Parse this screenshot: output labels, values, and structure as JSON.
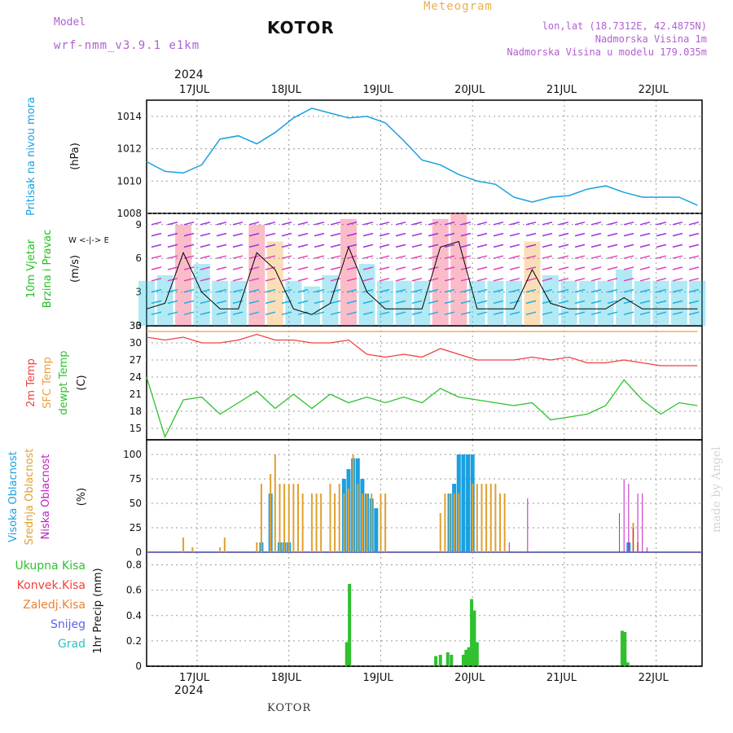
{
  "header": {
    "model_label": "Model",
    "model_name": "wrf-nmm_v3.9.1 e1km",
    "station": "KOTOR",
    "title": "Meteogram",
    "coords": "lon,lat (18.7312E, 42.4875N)",
    "elevation": "Nadmorska Visina 1m",
    "model_elevation": "Nadmorska Visina u modelu 179.035m",
    "year": "2024",
    "footer_station": "KOTOR",
    "credit": "made by Angel"
  },
  "colors": {
    "pressure": "#1aa0e0",
    "temp2m": "#f04040",
    "sfc": "#e8a040",
    "dewpt": "#30c030",
    "high_cloud": "#1aa0e0",
    "mid_cloud": "#e0a030",
    "low_cloud": "#c020c0",
    "precip": "#30c030",
    "wind_label": "#20c020",
    "purple": "#b060d0"
  },
  "days": [
    "17JUL",
    "18JUL",
    "19JUL",
    "20JUL",
    "21JUL",
    "22JUL"
  ],
  "panels": {
    "pressure": {
      "label": "Pritisak na nivou mora",
      "unit": "(hPa)",
      "ticks": [
        "1008",
        "1010",
        "1012",
        "1014"
      ]
    },
    "wind": {
      "label1": "10m Vjetar",
      "label2": "Brzina i Pravac",
      "unit": "(m/s)",
      "ticks": [
        "3",
        "6",
        "9",
        "0"
      ],
      "compass": "W <-|-> E"
    },
    "temp": {
      "label1": "2m Temp",
      "label2": "SFC Temp",
      "label3": "dewpt Temp",
      "unit": "(C)",
      "ticks": [
        "15",
        "18",
        "21",
        "24",
        "27",
        "30",
        "33"
      ]
    },
    "cloud": {
      "label1": "Visoka Oblacnost",
      "label2": "Srednja Oblacnost",
      "label3": "Niska Oblacnost",
      "unit": "(%)",
      "ticks": [
        "0",
        "25",
        "50",
        "75",
        "100"
      ]
    },
    "precip": {
      "legend": [
        "Ukupna Kisa",
        "Konvek.Kisa",
        "Zaledj.Kisa",
        "Snijeg",
        "Grad"
      ],
      "unit": "1hr Precip (mm)",
      "ticks": [
        "0",
        "0.2",
        "0.4",
        "0.6",
        "0.8"
      ]
    }
  },
  "chart_data": [
    {
      "type": "line",
      "title": "Pritisak na nivou mora",
      "ylabel": "(hPa)",
      "ylim": [
        1008,
        1015
      ],
      "x_unit": "day of July 2024",
      "x": [
        16.5,
        16.7,
        16.9,
        17.1,
        17.3,
        17.5,
        17.7,
        17.9,
        18.1,
        18.3,
        18.5,
        18.7,
        18.9,
        19.1,
        19.3,
        19.5,
        19.7,
        19.9,
        20.1,
        20.3,
        20.5,
        20.7,
        20.9,
        21.1,
        21.3,
        21.5,
        21.7,
        21.9,
        22.1,
        22.3,
        22.5
      ],
      "values": [
        1011.2,
        1010.6,
        1010.5,
        1011.0,
        1012.6,
        1012.8,
        1012.3,
        1013.0,
        1013.9,
        1014.5,
        1014.2,
        1013.9,
        1014.0,
        1013.6,
        1012.5,
        1011.3,
        1011.0,
        1010.4,
        1010.0,
        1009.8,
        1009.0,
        1008.7,
        1009.0,
        1009.1,
        1009.5,
        1009.7,
        1009.3,
        1009.0,
        1009.0,
        1009.0,
        1008.5
      ]
    },
    {
      "type": "line",
      "title": "10m Vjetar Brzina i Pravac",
      "ylabel": "(m/s)",
      "ylim": [
        0,
        10
      ],
      "x_unit": "day of July 2024",
      "x": [
        16.5,
        16.7,
        16.9,
        17.1,
        17.3,
        17.5,
        17.7,
        17.9,
        18.1,
        18.3,
        18.5,
        18.7,
        18.9,
        19.1,
        19.3,
        19.5,
        19.7,
        19.9,
        20.1,
        20.3,
        20.5,
        20.7,
        20.9,
        21.1,
        21.3,
        21.5,
        21.7,
        21.9,
        22.1,
        22.3,
        22.5
      ],
      "values": [
        1.5,
        2.0,
        6.5,
        3.0,
        1.5,
        1.5,
        6.5,
        5.0,
        1.5,
        1.0,
        2.0,
        7.0,
        3.0,
        1.5,
        1.5,
        1.5,
        7.0,
        7.5,
        1.5,
        1.5,
        1.5,
        5.0,
        2.0,
        1.5,
        1.5,
        1.5,
        2.5,
        1.5,
        1.5,
        1.5,
        1.5
      ]
    },
    {
      "type": "line",
      "title": "2m Temp / SFC Temp / dewpt Temp",
      "ylabel": "(C)",
      "ylim": [
        13,
        33
      ],
      "x_unit": "day of July 2024",
      "x": [
        16.5,
        16.7,
        16.9,
        17.1,
        17.3,
        17.5,
        17.7,
        17.9,
        18.1,
        18.3,
        18.5,
        18.7,
        18.9,
        19.1,
        19.3,
        19.5,
        19.7,
        19.9,
        20.1,
        20.3,
        20.5,
        20.7,
        20.9,
        21.1,
        21.3,
        21.5,
        21.7,
        21.9,
        22.1,
        22.3,
        22.5
      ],
      "series": [
        {
          "name": "SFC Temp",
          "values": [
            32,
            32,
            32,
            32,
            32,
            32,
            32,
            32,
            32,
            32,
            32,
            32,
            32,
            32,
            32,
            32,
            32,
            32,
            32,
            32,
            32,
            32,
            32,
            32,
            32,
            32,
            32,
            32,
            32,
            32,
            32
          ]
        },
        {
          "name": "2m Temp",
          "values": [
            31.0,
            30.5,
            31.0,
            30.0,
            30.0,
            30.5,
            31.5,
            30.5,
            30.5,
            30.0,
            30.0,
            30.5,
            28.0,
            27.5,
            28.0,
            27.5,
            29.0,
            28.0,
            27.0,
            27.0,
            27.0,
            27.5,
            27.0,
            27.5,
            26.5,
            26.5,
            27.0,
            26.5,
            26.0,
            26.0,
            26.0
          ]
        },
        {
          "name": "dewpt Temp",
          "values": [
            24.0,
            13.5,
            20.0,
            20.5,
            17.5,
            19.5,
            21.5,
            18.5,
            21.0,
            18.5,
            21.0,
            19.5,
            20.5,
            19.5,
            20.5,
            19.5,
            22.0,
            20.5,
            20.0,
            19.5,
            19.0,
            19.5,
            16.5,
            17.0,
            17.5,
            19.0,
            23.5,
            20.0,
            17.5,
            19.5,
            19.0
          ]
        }
      ]
    },
    {
      "type": "bar",
      "title": "Oblacnost",
      "ylabel": "(%)",
      "ylim": [
        0,
        100
      ],
      "x_unit": "day of July 2024",
      "series": [
        {
          "name": "Visoka Oblacnost",
          "x": [
            17.75,
            17.85,
            17.95,
            18.0,
            18.05,
            18.65,
            18.7,
            18.75,
            18.8,
            18.85,
            18.9,
            18.95,
            19.0,
            19.8,
            19.85,
            19.9,
            19.95,
            20.0,
            20.05,
            21.75
          ],
          "values": [
            10,
            60,
            10,
            10,
            10,
            75,
            85,
            96,
            96,
            75,
            60,
            55,
            45,
            60,
            70,
            100,
            100,
            100,
            100,
            10
          ]
        },
        {
          "name": "Srednja Oblacnost",
          "x": [
            16.9,
            17.0,
            17.3,
            17.35,
            17.7,
            17.75,
            17.85,
            17.9,
            17.95,
            18.0,
            18.05,
            18.1,
            18.15,
            18.2,
            18.3,
            18.35,
            18.4,
            18.5,
            18.55,
            18.6,
            18.65,
            18.7,
            18.75,
            18.8,
            18.85,
            18.9,
            18.95,
            19.05,
            19.1,
            19.7,
            19.75,
            19.8,
            19.85,
            19.9,
            20.05,
            20.1,
            20.15,
            20.2,
            20.25,
            20.3,
            20.35,
            20.4,
            21.8,
            21.85
          ],
          "values": [
            15,
            5,
            5,
            15,
            10,
            70,
            80,
            100,
            70,
            70,
            70,
            70,
            70,
            60,
            60,
            60,
            60,
            70,
            60,
            70,
            60,
            65,
            100,
            70,
            60,
            60,
            60,
            60,
            60,
            40,
            60,
            60,
            60,
            60,
            70,
            70,
            70,
            70,
            70,
            70,
            60,
            60,
            30,
            10
          ]
        },
        {
          "name": "Niska Oblacnost",
          "x": [
            20.45,
            20.65,
            21.65,
            21.7,
            21.75,
            21.8,
            21.85,
            21.9,
            21.95
          ],
          "values": [
            10,
            55,
            40,
            75,
            70,
            25,
            60,
            60,
            5
          ]
        }
      ]
    },
    {
      "type": "bar",
      "title": "1hr Precip",
      "ylabel": "1hr Precip (mm)",
      "ylim": [
        0,
        0.9
      ],
      "x_unit": "day of July 2024",
      "series": [
        {
          "name": "Ukupna Kisa",
          "x": [
            18.68,
            18.71,
            19.65,
            19.7,
            19.78,
            19.82,
            19.95,
            19.98,
            20.01,
            20.04,
            20.07,
            20.1,
            21.68,
            21.71,
            21.74
          ],
          "values": [
            0.19,
            0.65,
            0.08,
            0.09,
            0.11,
            0.09,
            0.09,
            0.13,
            0.15,
            0.53,
            0.44,
            0.19,
            0.28,
            0.27,
            0.03
          ]
        }
      ]
    }
  ]
}
